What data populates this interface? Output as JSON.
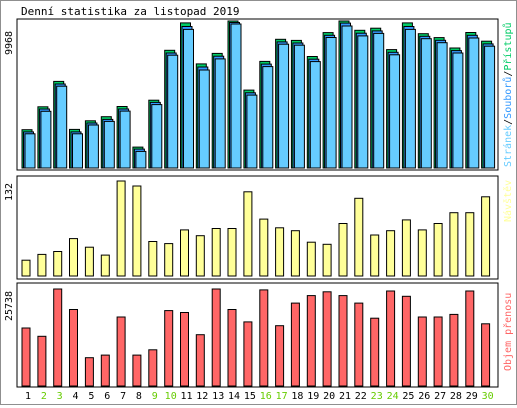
{
  "title": "Denní statistika za listopad 2019",
  "colors": {
    "pages": "#66ccff",
    "files": "#3399ff",
    "hits": "#00cc66",
    "visits": "#ffff99",
    "kbytes": "#ff6666",
    "weekend": "#66cc00",
    "text": "#000000"
  },
  "chart_data": [
    {
      "type": "bar",
      "name": "hits_files_pages",
      "ylim": [
        0,
        9968
      ],
      "max_label": "9968",
      "legend": {
        "pages": "Stránek",
        "sep1": "/",
        "files": "Souborů",
        "sep2": "/",
        "hits": "Přístupů"
      },
      "categories": [
        "1",
        "2",
        "3",
        "4",
        "5",
        "6",
        "7",
        "8",
        "9",
        "10",
        "11",
        "12",
        "13",
        "14",
        "15",
        "16",
        "17",
        "18",
        "19",
        "20",
        "21",
        "22",
        "23",
        "24",
        "25",
        "26",
        "27",
        "28",
        "29",
        "30"
      ],
      "series": [
        {
          "name": "Přístupů",
          "values": [
            2600,
            4150,
            5870,
            2620,
            3200,
            3480,
            4170,
            1420,
            4600,
            7980,
            9840,
            7060,
            7770,
            10000,
            5280,
            7230,
            8730,
            8650,
            7560,
            9180,
            10000,
            9340,
            9480,
            8030,
            9840,
            9110,
            8840,
            8140,
            9190,
            8600
          ]
        },
        {
          "name": "Souborů",
          "values": [
            2550,
            4100,
            5800,
            2550,
            3150,
            3400,
            4100,
            1380,
            4550,
            7900,
            9700,
            6950,
            7680,
            10000,
            5200,
            7150,
            8650,
            8580,
            7480,
            9100,
            9930,
            9240,
            9400,
            7950,
            9700,
            9030,
            8760,
            8060,
            9100,
            8520
          ]
        },
        {
          "name": "Stránek",
          "values": [
            2520,
            4050,
            5750,
            2520,
            3120,
            3360,
            4060,
            1330,
            4500,
            7850,
            9600,
            6850,
            7600,
            9968,
            5150,
            7080,
            8600,
            8530,
            7420,
            9050,
            9830,
            9160,
            9330,
            7880,
            9600,
            8970,
            8700,
            8000,
            9020,
            8460
          ]
        }
      ]
    },
    {
      "type": "bar",
      "name": "visits",
      "ylim": [
        0,
        132
      ],
      "max_label": "132",
      "legend": {
        "visits": "Návštěv"
      },
      "categories": [
        "1",
        "2",
        "3",
        "4",
        "5",
        "6",
        "7",
        "8",
        "9",
        "10",
        "11",
        "12",
        "13",
        "14",
        "15",
        "16",
        "17",
        "18",
        "19",
        "20",
        "21",
        "22",
        "23",
        "24",
        "25",
        "26",
        "27",
        "28",
        "29",
        "30"
      ],
      "series": [
        {
          "name": "Návštěv",
          "values": [
            22,
            30,
            34,
            52,
            40,
            29,
            132,
            125,
            48,
            45,
            64,
            56,
            66,
            66,
            117,
            79,
            67,
            63,
            47,
            44,
            73,
            108,
            57,
            63,
            78,
            64,
            73,
            88,
            88,
            110
          ]
        }
      ]
    },
    {
      "type": "bar",
      "name": "kbytes",
      "ylim": [
        0,
        25738
      ],
      "max_label": "25738",
      "legend": {
        "kbytes": "Objem přenosu"
      },
      "categories": [
        "1",
        "2",
        "3",
        "4",
        "5",
        "6",
        "7",
        "8",
        "9",
        "10",
        "11",
        "12",
        "13",
        "14",
        "15",
        "16",
        "17",
        "18",
        "19",
        "20",
        "21",
        "22",
        "23",
        "24",
        "25",
        "26",
        "27",
        "28",
        "29",
        "30"
      ],
      "series": [
        {
          "name": "Objem přenosu",
          "values": [
            15400,
            13200,
            25738,
            20300,
            7500,
            8200,
            18300,
            8200,
            9600,
            20000,
            19500,
            13600,
            25738,
            20300,
            17000,
            25500,
            16000,
            22000,
            24000,
            25000,
            24000,
            22000,
            18000,
            25200,
            23800,
            18300,
            18300,
            19000,
            25200,
            16500
          ]
        }
      ]
    }
  ],
  "x_labels": [
    {
      "text": "1",
      "weekend": false
    },
    {
      "text": "2",
      "weekend": true
    },
    {
      "text": "3",
      "weekend": true
    },
    {
      "text": "4",
      "weekend": false
    },
    {
      "text": "5",
      "weekend": false
    },
    {
      "text": "6",
      "weekend": false
    },
    {
      "text": "7",
      "weekend": false
    },
    {
      "text": "8",
      "weekend": false
    },
    {
      "text": "9",
      "weekend": true
    },
    {
      "text": "10",
      "weekend": true
    },
    {
      "text": "11",
      "weekend": false
    },
    {
      "text": "12",
      "weekend": false
    },
    {
      "text": "13",
      "weekend": false
    },
    {
      "text": "14",
      "weekend": false
    },
    {
      "text": "15",
      "weekend": false
    },
    {
      "text": "16",
      "weekend": true
    },
    {
      "text": "17",
      "weekend": true
    },
    {
      "text": "18",
      "weekend": false
    },
    {
      "text": "19",
      "weekend": false
    },
    {
      "text": "20",
      "weekend": false
    },
    {
      "text": "21",
      "weekend": false
    },
    {
      "text": "22",
      "weekend": false
    },
    {
      "text": "23",
      "weekend": true
    },
    {
      "text": "24",
      "weekend": true
    },
    {
      "text": "25",
      "weekend": false
    },
    {
      "text": "26",
      "weekend": false
    },
    {
      "text": "27",
      "weekend": false
    },
    {
      "text": "28",
      "weekend": false
    },
    {
      "text": "29",
      "weekend": false
    },
    {
      "text": "30",
      "weekend": true
    }
  ]
}
